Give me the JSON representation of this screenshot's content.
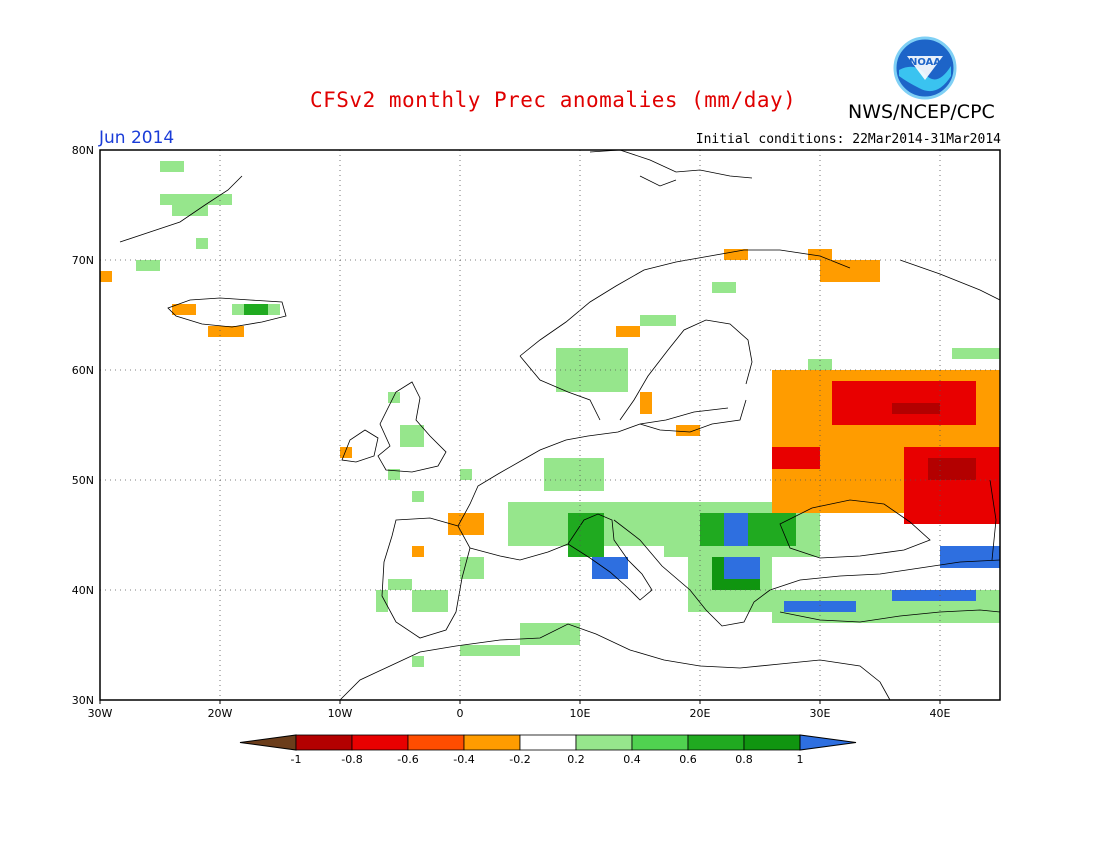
{
  "header": {
    "title": "CFSv2 monthly Prec anomalies (mm/day)",
    "agency": "NWS/NCEP/CPC",
    "month": "Jun 2014",
    "initial_conditions": "Initial conditions: 22Mar2014-31Mar2014",
    "logo_text": "NOAA"
  },
  "map": {
    "lon_range": [
      -30,
      45
    ],
    "lat_range": [
      30,
      80
    ],
    "lon_ticks": [
      {
        "value": -30,
        "label": "30W"
      },
      {
        "value": -20,
        "label": "20W"
      },
      {
        "value": -10,
        "label": "10W"
      },
      {
        "value": 0,
        "label": "0"
      },
      {
        "value": 10,
        "label": "10E"
      },
      {
        "value": 20,
        "label": "20E"
      },
      {
        "value": 30,
        "label": "30E"
      },
      {
        "value": 40,
        "label": "40E"
      }
    ],
    "lat_ticks": [
      {
        "value": 30,
        "label": "30N"
      },
      {
        "value": 40,
        "label": "40N"
      },
      {
        "value": 50,
        "label": "50N"
      },
      {
        "value": 60,
        "label": "60N"
      },
      {
        "value": 70,
        "label": "70N"
      },
      {
        "value": 80,
        "label": "80N"
      }
    ],
    "grid": "dotted"
  },
  "legend": {
    "labels": [
      "-1",
      "-0.8",
      "-0.6",
      "-0.4",
      "-0.2",
      "0.2",
      "0.4",
      "0.6",
      "0.8",
      "1"
    ],
    "colors": [
      "#6b3d1b",
      "#b30000",
      "#e80000",
      "#ff4d00",
      "#ff9c00",
      "#ffffff",
      "#96e68c",
      "#50d250",
      "#20aa20",
      "#109510",
      "#2e6fe0"
    ]
  },
  "anomaly_regions": [
    {
      "lon": [
        -25,
        -23
      ],
      "lat": [
        78,
        79
      ]
    },
    {
      "lon": [
        -25,
        -19
      ],
      "lat": [
        75,
        76
      ]
    },
    {
      "lon": [
        -24,
        -21
      ],
      "lat": [
        74,
        75
      ]
    },
    {
      "lon": [
        -22,
        -21
      ],
      "lat": [
        71,
        72
      ]
    },
    {
      "lon": [
        -27,
        -25
      ],
      "lat": [
        69,
        70
      ]
    },
    {
      "lon": [
        -30,
        -29
      ],
      "lat": [
        68,
        69
      ],
      "class": -0.4
    },
    {
      "lon": [
        -24,
        -22
      ],
      "lat": [
        65,
        66
      ],
      "class": -0.4
    },
    {
      "lon": [
        -21,
        -18
      ],
      "lat": [
        63,
        64
      ],
      "class": -0.4
    },
    {
      "lon": [
        -19,
        -15
      ],
      "lat": [
        65,
        66
      ]
    },
    {
      "lon": [
        -18,
        -16
      ],
      "lat": [
        65,
        66
      ],
      "class": 0.6
    },
    {
      "lon": [
        -10,
        -9
      ],
      "lat": [
        52,
        53
      ],
      "class": -0.4
    },
    {
      "lon": [
        -6,
        -5
      ],
      "lat": [
        57,
        58
      ]
    },
    {
      "lon": [
        -5,
        -3
      ],
      "lat": [
        53,
        55
      ]
    },
    {
      "lon": [
        -6,
        -5
      ],
      "lat": [
        50,
        51
      ]
    },
    {
      "lon": [
        -4,
        -3
      ],
      "lat": [
        48,
        49
      ]
    },
    {
      "lon": [
        0,
        1
      ],
      "lat": [
        50,
        51
      ]
    },
    {
      "lon": [
        -1,
        2
      ],
      "lat": [
        45,
        47
      ],
      "class": -0.4
    },
    {
      "lon": [
        -4,
        -3
      ],
      "lat": [
        43,
        44
      ],
      "class": -0.4
    },
    {
      "lon": [
        0,
        2
      ],
      "lat": [
        41,
        43
      ]
    },
    {
      "lon": [
        -6,
        -4
      ],
      "lat": [
        40,
        41
      ]
    },
    {
      "lon": [
        -7,
        -6
      ],
      "lat": [
        38,
        40
      ]
    },
    {
      "lon": [
        -4,
        -1
      ],
      "lat": [
        38,
        40
      ]
    },
    {
      "lon": [
        -4,
        -3
      ],
      "lat": [
        33,
        34
      ]
    },
    {
      "lon": [
        0,
        5
      ],
      "lat": [
        34,
        35
      ]
    },
    {
      "lon": [
        5,
        10
      ],
      "lat": [
        35,
        37
      ]
    },
    {
      "lon": [
        7,
        12
      ],
      "lat": [
        49,
        52
      ]
    },
    {
      "lon": [
        8,
        14
      ],
      "lat": [
        58,
        62
      ]
    },
    {
      "lon": [
        15,
        18
      ],
      "lat": [
        64,
        65
      ]
    },
    {
      "lon": [
        21,
        23
      ],
      "lat": [
        67,
        68
      ]
    },
    {
      "lon": [
        13,
        15
      ],
      "lat": [
        63,
        64
      ],
      "class": -0.4
    },
    {
      "lon": [
        22,
        24
      ],
      "lat": [
        70,
        71
      ],
      "class": -0.4
    },
    {
      "lon": [
        29,
        31
      ],
      "lat": [
        70,
        71
      ],
      "class": -0.4
    },
    {
      "lon": [
        30,
        35
      ],
      "lat": [
        68,
        70
      ],
      "class": -0.4
    },
    {
      "lon": [
        15,
        16
      ],
      "lat": [
        56,
        58
      ],
      "class": -0.4
    },
    {
      "lon": [
        18,
        20
      ],
      "lat": [
        54,
        55
      ],
      "class": -0.4
    },
    {
      "lon": [
        29,
        31
      ],
      "lat": [
        60,
        61
      ]
    },
    {
      "lon": [
        41,
        45
      ],
      "lat": [
        61,
        62
      ]
    },
    {
      "lon": [
        4,
        17
      ],
      "lat": [
        44,
        48
      ]
    },
    {
      "lon": [
        17,
        30
      ],
      "lat": [
        43,
        48
      ]
    },
    {
      "lon": [
        9,
        12
      ],
      "lat": [
        43,
        47
      ],
      "class": 0.6
    },
    {
      "lon": [
        20,
        28
      ],
      "lat": [
        44,
        47
      ],
      "class": 0.6
    },
    {
      "lon": [
        22,
        24
      ],
      "lat": [
        44,
        47
      ],
      "class": 1.0
    },
    {
      "lon": [
        11,
        14
      ],
      "lat": [
        41,
        43
      ],
      "class": 1.0
    },
    {
      "lon": [
        19,
        26
      ],
      "lat": [
        38,
        44
      ]
    },
    {
      "lon": [
        21,
        25
      ],
      "lat": [
        40,
        43
      ],
      "class": 0.8
    },
    {
      "lon": [
        22,
        25
      ],
      "lat": [
        41,
        43
      ],
      "class": 1.0
    },
    {
      "lon": [
        26,
        45
      ],
      "lat": [
        37,
        40
      ]
    },
    {
      "lon": [
        27,
        33
      ],
      "lat": [
        38,
        39
      ],
      "class": 1.0
    },
    {
      "lon": [
        36,
        43
      ],
      "lat": [
        39,
        40
      ],
      "class": 1.0
    },
    {
      "lon": [
        40,
        45
      ],
      "lat": [
        42,
        44
      ],
      "class": 1.0
    },
    {
      "lon": [
        26,
        45
      ],
      "lat": [
        47,
        60
      ],
      "class": -0.4
    },
    {
      "lon": [
        31,
        43
      ],
      "lat": [
        55,
        59
      ],
      "class": -0.6
    },
    {
      "lon": [
        37,
        45
      ],
      "lat": [
        46,
        53
      ],
      "class": -0.6
    },
    {
      "lon": [
        39,
        43
      ],
      "lat": [
        50,
        52
      ],
      "class": -0.8
    },
    {
      "lon": [
        36,
        40
      ],
      "lat": [
        56,
        57
      ],
      "class": -0.8
    },
    {
      "lon": [
        26,
        30
      ],
      "lat": [
        51,
        53
      ],
      "class": -0.6
    }
  ]
}
